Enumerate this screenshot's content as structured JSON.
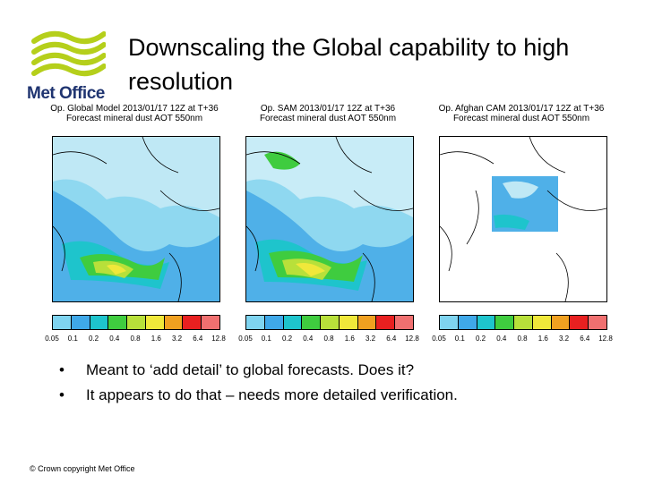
{
  "logo": {
    "text": "Met Office",
    "icon": "met-office-wave-logo",
    "color": "#b5cf1b"
  },
  "title": "Downscaling the Global capability to high resolution",
  "panels": [
    {
      "line1": "Op. Global Model 2013/01/17 12Z at T+36",
      "line2": "Forecast mineral dust AOT 550nm"
    },
    {
      "line1": "Op. SAM 2013/01/17 12Z at T+36",
      "line2": "Forecast mineral dust AOT 550nm"
    },
    {
      "line1": "Op. Afghan CAM 2013/01/17 12Z at T+36",
      "line2": "Forecast mineral dust AOT 550nm"
    }
  ],
  "colorbar": {
    "colors": [
      "#7fd4f0",
      "#3fa8e8",
      "#1ec4cc",
      "#3fcc3f",
      "#b8e03a",
      "#f0e83a",
      "#f0a020",
      "#e82020",
      "#f07070"
    ],
    "labels": [
      "0.05",
      "0.1",
      "0.2",
      "0.4",
      "0.8",
      "1.6",
      "3.2",
      "6.4",
      "12.8"
    ]
  },
  "bullets": [
    "Meant to ‘add detail’ to global forecasts. Does it?",
    "It appears to do that – needs more detailed verification."
  ],
  "footer": "© Crown copyright   Met Office"
}
